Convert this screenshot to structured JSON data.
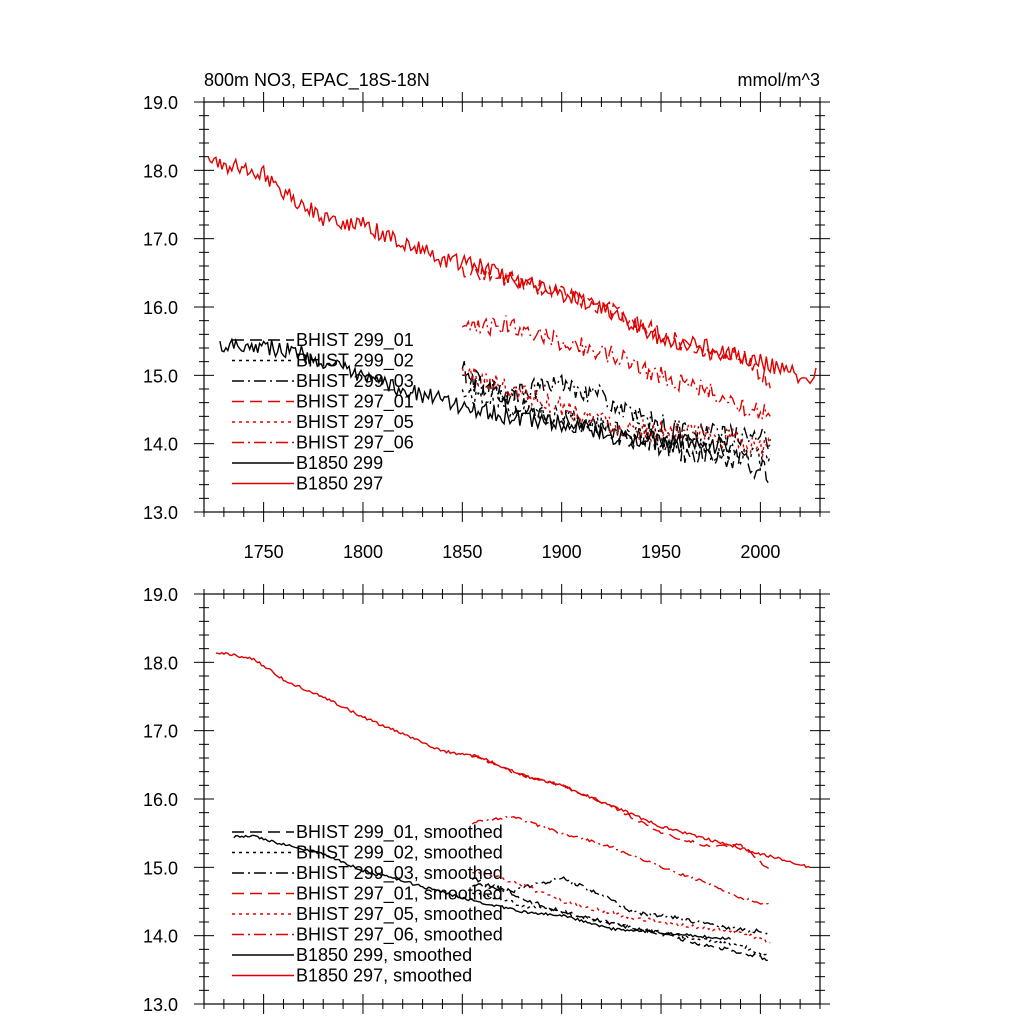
{
  "chart_data": [
    {
      "type": "line",
      "title_left": "800m NO3, EPAC_18S-18N",
      "title_right": "mmol/m^3",
      "xlim": [
        1720,
        2030
      ],
      "ylim": [
        13.0,
        19.0
      ],
      "xticks": [
        1750,
        1800,
        1850,
        1900,
        1950,
        2000
      ],
      "xtick_labels": [
        "1750",
        "1800",
        "1850",
        "1900",
        "1950",
        "2000"
      ],
      "yticks": [
        13.0,
        14.0,
        15.0,
        16.0,
        17.0,
        18.0,
        19.0
      ],
      "ytick_labels": [
        "13.0",
        "14.0",
        "15.0",
        "16.0",
        "17.0",
        "18.0",
        "19.0"
      ],
      "series": [
        {
          "name": "BHIST 299_01",
          "color": "#000000",
          "dash": "dash",
          "start": 1850,
          "end": 2005,
          "values": [
            [
              1850,
              15.05
            ],
            [
              1880,
              14.55
            ],
            [
              1900,
              14.3
            ],
            [
              1930,
              14.15
            ],
            [
              1960,
              13.9
            ],
            [
              1990,
              13.75
            ],
            [
              2005,
              13.55
            ]
          ],
          "noise": 0.18
        },
        {
          "name": "BHIST 299_02",
          "color": "#000000",
          "dash": "dot",
          "start": 1850,
          "end": 2005,
          "values": [
            [
              1850,
              14.75
            ],
            [
              1880,
              14.5
            ],
            [
              1900,
              14.4
            ],
            [
              1930,
              14.2
            ],
            [
              1960,
              14.0
            ],
            [
              1990,
              13.85
            ],
            [
              2005,
              13.7
            ]
          ],
          "noise": 0.16
        },
        {
          "name": "BHIST 299_03",
          "color": "#000000",
          "dash": "dashdot",
          "start": 1850,
          "end": 2005,
          "values": [
            [
              1850,
              14.95
            ],
            [
              1875,
              14.7
            ],
            [
              1900,
              14.9
            ],
            [
              1920,
              14.7
            ],
            [
              1935,
              14.4
            ],
            [
              1960,
              14.2
            ],
            [
              1990,
              14.1
            ],
            [
              2005,
              14.05
            ]
          ],
          "noise": 0.16
        },
        {
          "name": "BHIST 297_01",
          "color": "#e00000",
          "dash": "dash",
          "start": 1850,
          "end": 2005,
          "values": [
            [
              1852,
              16.55
            ],
            [
              1875,
              16.4
            ],
            [
              1900,
              16.2
            ],
            [
              1925,
              15.95
            ],
            [
              1950,
              15.6
            ],
            [
              1975,
              15.3
            ],
            [
              1990,
              15.3
            ],
            [
              2005,
              14.9
            ]
          ],
          "noise": 0.12
        },
        {
          "name": "BHIST 297_05",
          "color": "#e00000",
          "dash": "dot",
          "start": 1850,
          "end": 2005,
          "values": [
            [
              1850,
              15.05
            ],
            [
              1875,
              14.8
            ],
            [
              1900,
              14.55
            ],
            [
              1930,
              14.25
            ],
            [
              1960,
              14.15
            ],
            [
              1990,
              14.05
            ],
            [
              2005,
              13.9
            ]
          ],
          "noise": 0.16
        },
        {
          "name": "BHIST 297_06",
          "color": "#e00000",
          "dash": "dashdot",
          "start": 1850,
          "end": 2005,
          "values": [
            [
              1850,
              15.65
            ],
            [
              1875,
              15.75
            ],
            [
              1900,
              15.5
            ],
            [
              1925,
              15.3
            ],
            [
              1950,
              15.0
            ],
            [
              1975,
              14.75
            ],
            [
              1990,
              14.55
            ],
            [
              2005,
              14.45
            ]
          ],
          "noise": 0.14
        },
        {
          "name": "B1850 299",
          "color": "#000000",
          "dash": "solid",
          "start": 1728,
          "end": 1985,
          "values": [
            [
              1728,
              15.45
            ],
            [
              1745,
              15.45
            ],
            [
              1765,
              15.35
            ],
            [
              1780,
              15.2
            ],
            [
              1800,
              14.95
            ],
            [
              1820,
              14.8
            ],
            [
              1850,
              14.55
            ],
            [
              1880,
              14.35
            ],
            [
              1900,
              14.3
            ],
            [
              1925,
              14.1
            ],
            [
              1950,
              14.05
            ],
            [
              1985,
              13.95
            ]
          ],
          "noise": 0.12
        },
        {
          "name": "B1850 297",
          "color": "#e00000",
          "dash": "solid",
          "start": 1722,
          "end": 2028,
          "values": [
            [
              1722,
              18.15
            ],
            [
              1735,
              18.05
            ],
            [
              1750,
              17.95
            ],
            [
              1762,
              17.65
            ],
            [
              1780,
              17.3
            ],
            [
              1800,
              17.2
            ],
            [
              1820,
              16.95
            ],
            [
              1840,
              16.7
            ],
            [
              1860,
              16.6
            ],
            [
              1880,
              16.35
            ],
            [
              1900,
              16.2
            ],
            [
              1925,
              15.9
            ],
            [
              1950,
              15.55
            ],
            [
              1975,
              15.4
            ],
            [
              2000,
              15.2
            ],
            [
              2020,
              15.0
            ]
          ],
          "noise": 0.12
        }
      ]
    },
    {
      "type": "line",
      "xlim": [
        1720,
        2030
      ],
      "ylim": [
        13.0,
        19.0
      ],
      "xticks": [
        1750,
        1800,
        1850,
        1900,
        1950,
        2000
      ],
      "yticks": [
        13.0,
        14.0,
        15.0,
        16.0,
        17.0,
        18.0,
        19.0
      ],
      "ytick_labels": [
        "13.0",
        "14.0",
        "15.0",
        "16.0",
        "17.0",
        "18.0",
        "19.0"
      ],
      "series": [
        {
          "name": "BHIST 299_01, smoothed",
          "color": "#000000",
          "dash": "dash",
          "start": 1855,
          "end": 2005,
          "values": [
            [
              1855,
              14.85
            ],
            [
              1880,
              14.55
            ],
            [
              1900,
              14.35
            ],
            [
              1930,
              14.15
            ],
            [
              1960,
              13.95
            ],
            [
              1990,
              13.75
            ],
            [
              2005,
              13.65
            ]
          ],
          "noise": 0.03
        },
        {
          "name": "BHIST 299_02, smoothed",
          "color": "#000000",
          "dash": "dot",
          "start": 1855,
          "end": 2005,
          "values": [
            [
              1855,
              14.65
            ],
            [
              1880,
              14.45
            ],
            [
              1900,
              14.35
            ],
            [
              1930,
              14.15
            ],
            [
              1960,
              14.0
            ],
            [
              1990,
              13.85
            ],
            [
              2005,
              13.7
            ]
          ],
          "noise": 0.03
        },
        {
          "name": "BHIST 299_03, smoothed",
          "color": "#000000",
          "dash": "dashdot",
          "start": 1855,
          "end": 2005,
          "values": [
            [
              1855,
              14.75
            ],
            [
              1875,
              14.65
            ],
            [
              1900,
              14.85
            ],
            [
              1920,
              14.6
            ],
            [
              1935,
              14.35
            ],
            [
              1960,
              14.25
            ],
            [
              1985,
              14.1
            ],
            [
              2005,
              14.05
            ]
          ],
          "noise": 0.03
        },
        {
          "name": "BHIST 297_01, smoothed",
          "color": "#e00000",
          "dash": "dash",
          "start": 1855,
          "end": 2005,
          "values": [
            [
              1855,
              16.65
            ],
            [
              1875,
              16.4
            ],
            [
              1900,
              16.2
            ],
            [
              1925,
              15.9
            ],
            [
              1950,
              15.5
            ],
            [
              1975,
              15.3
            ],
            [
              1990,
              15.35
            ],
            [
              2005,
              14.95
            ]
          ],
          "noise": 0.02
        },
        {
          "name": "BHIST 297_05, smoothed",
          "color": "#e00000",
          "dash": "dot",
          "start": 1855,
          "end": 2005,
          "values": [
            [
              1855,
              14.95
            ],
            [
              1875,
              14.8
            ],
            [
              1900,
              14.5
            ],
            [
              1930,
              14.3
            ],
            [
              1960,
              14.15
            ],
            [
              1990,
              14.05
            ],
            [
              2005,
              13.9
            ]
          ],
          "noise": 0.03
        },
        {
          "name": "BHIST 297_06, smoothed",
          "color": "#e00000",
          "dash": "dashdot",
          "start": 1855,
          "end": 2005,
          "values": [
            [
              1855,
              15.65
            ],
            [
              1875,
              15.75
            ],
            [
              1900,
              15.5
            ],
            [
              1925,
              15.3
            ],
            [
              1950,
              15.0
            ],
            [
              1975,
              14.75
            ],
            [
              1990,
              14.55
            ],
            [
              2005,
              14.45
            ]
          ],
          "noise": 0.02
        },
        {
          "name": "B1850 299, smoothed",
          "color": "#000000",
          "dash": "solid",
          "start": 1735,
          "end": 1985,
          "values": [
            [
              1735,
              15.45
            ],
            [
              1745,
              15.45
            ],
            [
              1765,
              15.3
            ],
            [
              1780,
              15.2
            ],
            [
              1800,
              14.95
            ],
            [
              1820,
              14.8
            ],
            [
              1850,
              14.55
            ],
            [
              1880,
              14.35
            ],
            [
              1900,
              14.3
            ],
            [
              1925,
              14.1
            ],
            [
              1950,
              14.05
            ],
            [
              1985,
              13.95
            ]
          ],
          "noise": 0.02
        },
        {
          "name": "B1850 297, smoothed",
          "color": "#e00000",
          "dash": "solid",
          "start": 1726,
          "end": 2025,
          "values": [
            [
              1726,
              18.15
            ],
            [
              1745,
              18.05
            ],
            [
              1760,
              17.75
            ],
            [
              1775,
              17.55
            ],
            [
              1790,
              17.35
            ],
            [
              1800,
              17.2
            ],
            [
              1820,
              16.95
            ],
            [
              1840,
              16.7
            ],
            [
              1860,
              16.6
            ],
            [
              1880,
              16.35
            ],
            [
              1900,
              16.2
            ],
            [
              1925,
              15.9
            ],
            [
              1950,
              15.6
            ],
            [
              1975,
              15.4
            ],
            [
              2000,
              15.2
            ],
            [
              2025,
              15.0
            ]
          ],
          "noise": 0.02
        }
      ]
    }
  ]
}
